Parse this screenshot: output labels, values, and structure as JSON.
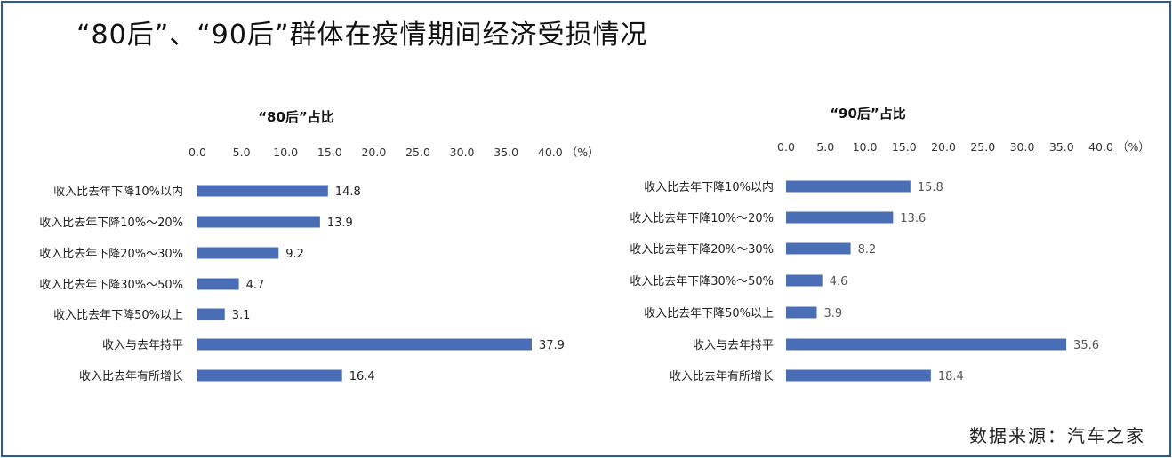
{
  "title": "“80后”、“90后”群体在疫情期间经济受损情况",
  "source": "数据来源：汽车之家",
  "colors": {
    "bar": "#4a6eb5",
    "frame": "#2e5a9a"
  },
  "chart_data": [
    {
      "type": "bar",
      "orientation": "horizontal",
      "title": "“80后”占比",
      "categories": [
        "收入比去年下降10%以内",
        "收入比去年下降10%～20%",
        "收入比去年下降20%～30%",
        "收入比去年下降30%～50%",
        "收入比去年下降50%以上",
        "收入与去年持平",
        "收入比去年有所增长"
      ],
      "values": [
        14.8,
        13.9,
        9.2,
        4.7,
        3.1,
        37.9,
        16.4
      ],
      "value_labels": [
        "14.8",
        "13.9",
        "9.2",
        "4.7",
        "3.1",
        "37.9",
        "16.4"
      ],
      "xticks": [
        "0.0",
        "5.0",
        "10.0",
        "15.0",
        "20.0",
        "25.0",
        "30.0",
        "35.0",
        "40.0"
      ],
      "unit_label": "（%）",
      "xlim": [
        0,
        40
      ],
      "axis_position": "top",
      "grid": false
    },
    {
      "type": "bar",
      "orientation": "horizontal",
      "title": "“90后”占比",
      "categories": [
        "收入比去年下降10%以内",
        "收入比去年下降10%～20%",
        "收入比去年下降20%～30%",
        "收入比去年下降30%～50%",
        "收入比去年下降50%以上",
        "收入与去年持平",
        "收入比去年有所增长"
      ],
      "values": [
        15.8,
        13.6,
        8.2,
        4.6,
        3.9,
        35.6,
        18.4
      ],
      "value_labels": [
        "15.8",
        "13.6",
        "8.2",
        "4.6",
        "3.9",
        "35.6",
        "18.4"
      ],
      "xticks": [
        "0.0",
        "5.0",
        "10.0",
        "15.0",
        "20.0",
        "25.0",
        "30.0",
        "35.0",
        "40.0"
      ],
      "unit_label": "（%）",
      "xlim": [
        0,
        40
      ],
      "axis_position": "top",
      "grid": false
    }
  ]
}
